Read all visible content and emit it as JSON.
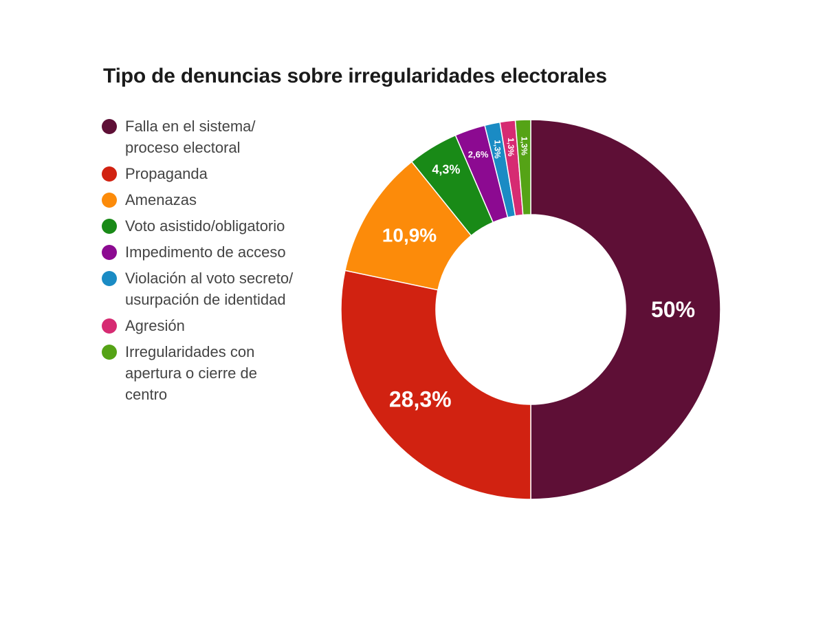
{
  "chart_data": {
    "type": "pie",
    "variant": "donut",
    "title": "Tipo de denuncias sobre irregularidades electorales",
    "legend_position": "left",
    "slices": [
      {
        "label": "Falla en el sistema/\nproceso electoral",
        "value": 50.0,
        "display": "50%",
        "color": "#5e0f36"
      },
      {
        "label": "Propaganda",
        "value": 28.3,
        "display": "28,3%",
        "color": "#d12211"
      },
      {
        "label": "Amenazas",
        "value": 10.9,
        "display": "10,9%",
        "color": "#fc8b0a"
      },
      {
        "label": "Voto asistido/obligatorio",
        "value": 4.3,
        "display": "4,3%",
        "color": "#198a17"
      },
      {
        "label": "Impedimento de acceso",
        "value": 2.6,
        "display": "2,6%",
        "color": "#8c0a91"
      },
      {
        "label": "Violación al voto secreto/\nusurpación de identidad",
        "value": 1.3,
        "display": "1,3%",
        "color": "#1a8bc4"
      },
      {
        "label": "Agresión",
        "value": 1.3,
        "display": "1,3%",
        "color": "#d62b72"
      },
      {
        "label": "Irregularidades con\napertura o cierre de\ncentro",
        "value": 1.3,
        "display": "1,3%",
        "color": "#55a316"
      }
    ]
  }
}
